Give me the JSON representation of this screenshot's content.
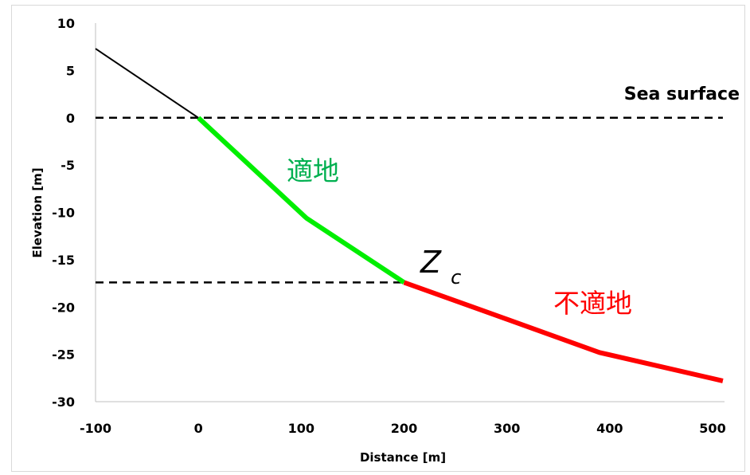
{
  "chart_data": {
    "type": "line",
    "xlabel": "Distance [m]",
    "ylabel": "Elevation [m]",
    "xlim": [
      -100,
      500
    ],
    "ylim": [
      -30,
      10
    ],
    "xticks": [
      "-100",
      "0",
      "100",
      "200",
      "300",
      "400",
      "500"
    ],
    "yticks": [
      "10",
      "5",
      "0",
      "-5",
      "-10",
      "-15",
      "-20",
      "-25",
      "-30"
    ],
    "grid": false,
    "series": [
      {
        "color": "#000000",
        "x": [
          -100,
          0
        ],
        "y": [
          7.3,
          0
        ]
      },
      {
        "color": "#00ee00",
        "x": [
          0,
          105,
          200
        ],
        "y": [
          0,
          -10.6,
          -17.4
        ]
      },
      {
        "color": "#ff0000",
        "x": [
          200,
          290,
          390,
          510
        ],
        "y": [
          -17.4,
          -20.9,
          -24.8,
          -27.8
        ]
      }
    ],
    "reference_lines": [
      {
        "style": "dashed",
        "y": 0,
        "x": [
          -100,
          510
        ]
      },
      {
        "style": "dashed",
        "y": -17.4,
        "x": [
          -100,
          200
        ]
      }
    ],
    "annotations": {
      "sea_surface": "Sea surface",
      "suitable": "適地",
      "unsuitable": "不適地",
      "zc_main": "Z",
      "zc_sub": "c"
    },
    "colors": {
      "suitable": "#00b050",
      "unsuitable": "#ff0000"
    }
  }
}
